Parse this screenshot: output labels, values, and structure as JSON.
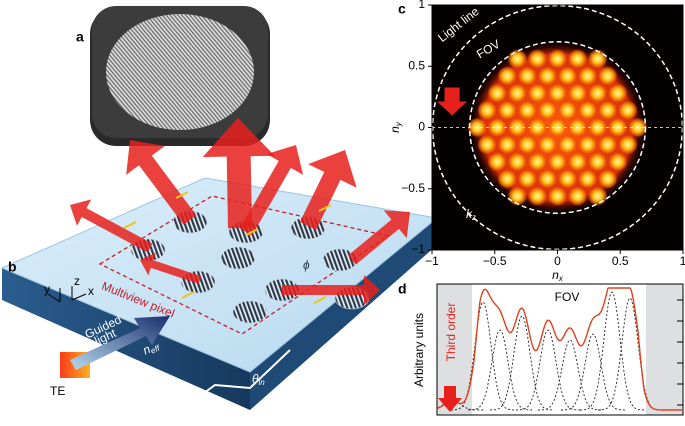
{
  "panel_labels": {
    "a": "a",
    "b": "b",
    "c": "c",
    "d": "d"
  },
  "panel_b": {
    "axis_x": "x",
    "axis_y": "y",
    "axis_z": "z",
    "multiview_pixel": "Multiview pixel",
    "guided_light": [
      "Guided",
      "light"
    ],
    "n_eff": "n",
    "n_eff_sub": "eff",
    "theta": "θ",
    "theta_sub": "in",
    "phi": "ϕ",
    "te": "TE"
  },
  "panel_c": {
    "xlabel": "n",
    "xlabel_sub": "x",
    "ylabel": "n",
    "ylabel_sub": "y",
    "xlim": [
      -1,
      1
    ],
    "ylim": [
      -1,
      1
    ],
    "xticks": [
      {
        "value": -1,
        "label": "−1"
      },
      {
        "value": -0.5,
        "label": "−0.5"
      },
      0,
      0.5,
      1
    ],
    "yticks": [
      1,
      0.5,
      0,
      {
        "value": -0.5,
        "label": "−0.5"
      },
      {
        "value": -1,
        "label": "−1"
      }
    ],
    "light_line": "Light line",
    "fov": "FOV",
    "kz": "k",
    "kz_sub": "z"
  },
  "panel_d": {
    "ylabel": "Arbitrary units",
    "fov": "FOV",
    "third_order": "Third order"
  }
}
